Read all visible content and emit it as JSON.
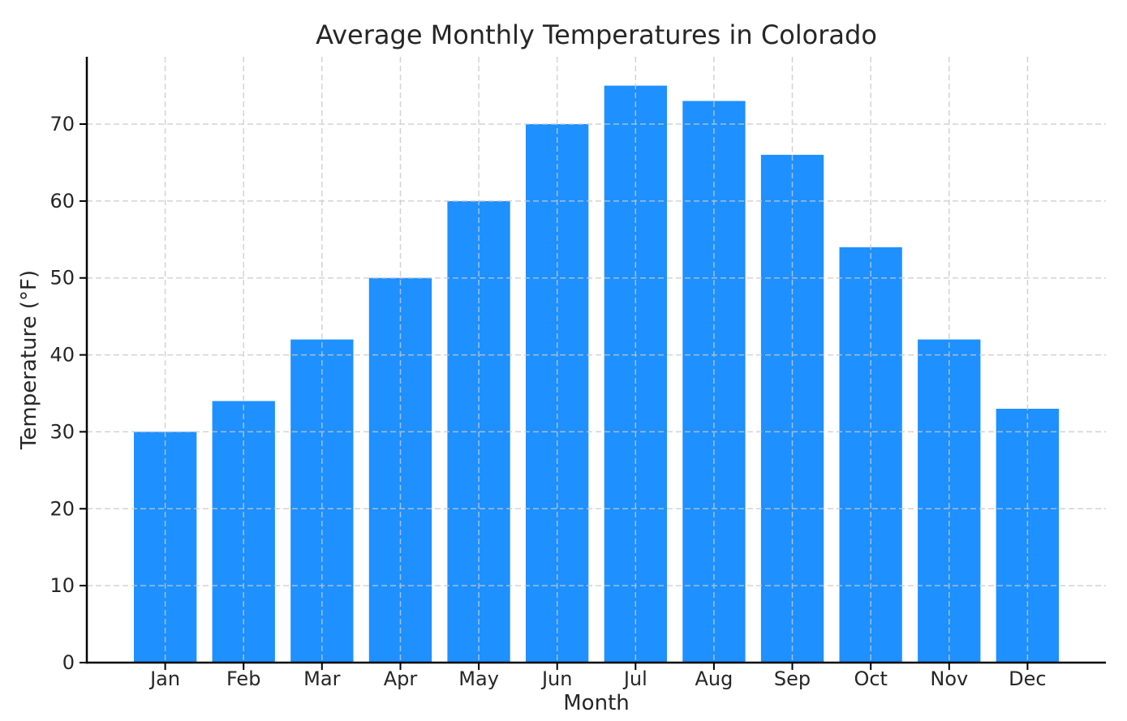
{
  "chart_data": {
    "type": "bar",
    "title": "Average Monthly Temperatures in Colorado",
    "xlabel": "Month",
    "ylabel": "Temperature (°F)",
    "categories": [
      "Jan",
      "Feb",
      "Mar",
      "Apr",
      "May",
      "Jun",
      "Jul",
      "Aug",
      "Sep",
      "Oct",
      "Nov",
      "Dec"
    ],
    "values": [
      30,
      34,
      42,
      50,
      60,
      70,
      75,
      73,
      66,
      54,
      42,
      33
    ],
    "yticks": [
      0,
      10,
      20,
      30,
      40,
      50,
      60,
      70
    ],
    "ylim": [
      0,
      78.75
    ],
    "grid": true,
    "grid_style": "dashed",
    "legend": "none",
    "bar_color": "#1E90FF",
    "grid_color": "#c9c9c9",
    "axis_color": "#000000",
    "text_color": "#262626",
    "background_color": "#ffffff"
  }
}
